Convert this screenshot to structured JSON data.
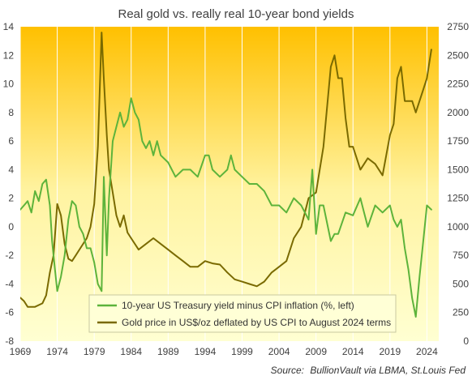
{
  "chart_data": {
    "type": "line",
    "title": "Real gold vs. really real 10-year bond yields",
    "source_label": "Source:",
    "source_text": "BullionVault via LBMA, St.Louis Fed",
    "x_ticks": [
      "1969",
      "1974",
      "1979",
      "1984",
      "1989",
      "1994",
      "1999",
      "2004",
      "2009",
      "2014",
      "2019",
      "2024"
    ],
    "xlim": [
      1969,
      2025.6
    ],
    "left_axis": {
      "ylim": [
        -8,
        14
      ],
      "ticks": [
        -8,
        -6,
        -4,
        -2,
        0,
        2,
        4,
        6,
        8,
        10,
        12,
        14
      ]
    },
    "right_axis": {
      "ylim": [
        0,
        2750
      ],
      "ticks": [
        0,
        250,
        500,
        750,
        1000,
        1250,
        1500,
        1750,
        2000,
        2250,
        2500,
        2750
      ]
    },
    "grid": "vertical",
    "legend_position": "bottom-center",
    "colors": {
      "yield_series": "#5db33b",
      "gold_series": "#7a6a00",
      "background_top": "#ffc000",
      "background_bottom": "#ffffd2",
      "grid": "#ffffff",
      "text": "#404040"
    },
    "series": [
      {
        "name": "10-year US Treasury yield minus CPI inflation (%, left)",
        "axis": "left",
        "x": [
          1969,
          1969.5,
          1970,
          1970.5,
          1971,
          1971.5,
          1972,
          1972.5,
          1973,
          1973.3,
          1973.7,
          1974,
          1974.5,
          1975,
          1975.5,
          1976,
          1976.5,
          1977,
          1977.5,
          1978,
          1978.5,
          1979,
          1979.5,
          1980,
          1980.3,
          1980.7,
          1981,
          1981.5,
          1982,
          1982.5,
          1983,
          1983.5,
          1984,
          1984.5,
          1985,
          1985.5,
          1986,
          1986.5,
          1987,
          1987.5,
          1988,
          1989,
          1990,
          1991,
          1992,
          1993,
          1994,
          1994.5,
          1995,
          1996,
          1997,
          1997.5,
          1998,
          1999,
          2000,
          2001,
          2002,
          2003,
          2004,
          2005,
          2006,
          2007,
          2008,
          2008.5,
          2009,
          2009.5,
          2010,
          2011,
          2011.5,
          2012,
          2013,
          2014,
          2015,
          2015.5,
          2016,
          2017,
          2018,
          2019,
          2019.5,
          2020,
          2020.5,
          2021,
          2021.5,
          2022,
          2022.5,
          2023,
          2023.5,
          2024,
          2024.6
        ],
        "values": [
          1.2,
          1.5,
          1.8,
          1.0,
          2.5,
          1.8,
          3.0,
          3.3,
          1.5,
          -1.0,
          -3.0,
          -4.5,
          -3.5,
          -2.0,
          0.5,
          1.8,
          1.5,
          0.0,
          -0.5,
          -1.5,
          -1.5,
          -2.5,
          -4.0,
          -4.5,
          3.5,
          -2.0,
          2.0,
          6.0,
          7.0,
          8.0,
          7.0,
          7.5,
          9.0,
          8.0,
          7.5,
          6.0,
          5.5,
          6.0,
          5.0,
          6.0,
          5.0,
          4.5,
          3.5,
          4.0,
          4.0,
          3.5,
          5.0,
          5.0,
          4.0,
          3.5,
          4.0,
          5.0,
          4.0,
          3.5,
          3.0,
          3.0,
          2.5,
          1.5,
          1.5,
          1.0,
          2.0,
          1.5,
          0.5,
          4.0,
          -0.5,
          1.5,
          1.5,
          -1.0,
          -0.5,
          -0.5,
          1.0,
          0.8,
          2.0,
          1.0,
          0.0,
          1.5,
          1.0,
          1.5,
          0.5,
          0.0,
          0.5,
          -1.5,
          -3.0,
          -5.0,
          -6.3,
          -3.5,
          -1.0,
          1.5,
          1.2
        ]
      },
      {
        "name": "Gold price in US$/oz deflated by US CPI to August 2024 terms",
        "axis": "right",
        "x": [
          1969,
          1969.5,
          1970,
          1971,
          1972,
          1972.5,
          1973,
          1973.5,
          1974,
          1974.5,
          1975,
          1975.5,
          1976,
          1976.5,
          1977,
          1978,
          1978.5,
          1979,
          1979.5,
          1980,
          1980.3,
          1980.7,
          1981,
          1981.5,
          1982,
          1982.5,
          1983,
          1983.5,
          1984,
          1985,
          1986,
          1987,
          1988,
          1989,
          1990,
          1991,
          1992,
          1993,
          1994,
          1995,
          1996,
          1997,
          1998,
          1999,
          2000,
          2001,
          2002,
          2003,
          2004,
          2005,
          2006,
          2007,
          2008,
          2009,
          2010,
          2011,
          2011.5,
          2012,
          2012.5,
          2013,
          2013.5,
          2014,
          2015,
          2016,
          2017,
          2018,
          2019,
          2019.5,
          2020,
          2020.5,
          2021,
          2022,
          2022.5,
          2023,
          2023.5,
          2024,
          2024.6
        ],
        "values": [
          380,
          350,
          300,
          300,
          330,
          400,
          600,
          750,
          1200,
          1100,
          850,
          720,
          700,
          750,
          800,
          900,
          1000,
          1200,
          1700,
          2700,
          2300,
          1800,
          1500,
          1300,
          1100,
          1000,
          1100,
          950,
          900,
          800,
          850,
          900,
          850,
          800,
          750,
          700,
          650,
          650,
          700,
          680,
          670,
          600,
          540,
          520,
          500,
          480,
          520,
          600,
          650,
          700,
          900,
          1000,
          1250,
          1300,
          1700,
          2400,
          2500,
          2300,
          2300,
          1950,
          1700,
          1700,
          1500,
          1600,
          1550,
          1450,
          1800,
          1900,
          2300,
          2400,
          2100,
          2100,
          2000,
          2100,
          2200,
          2300,
          2550
        ]
      }
    ]
  }
}
